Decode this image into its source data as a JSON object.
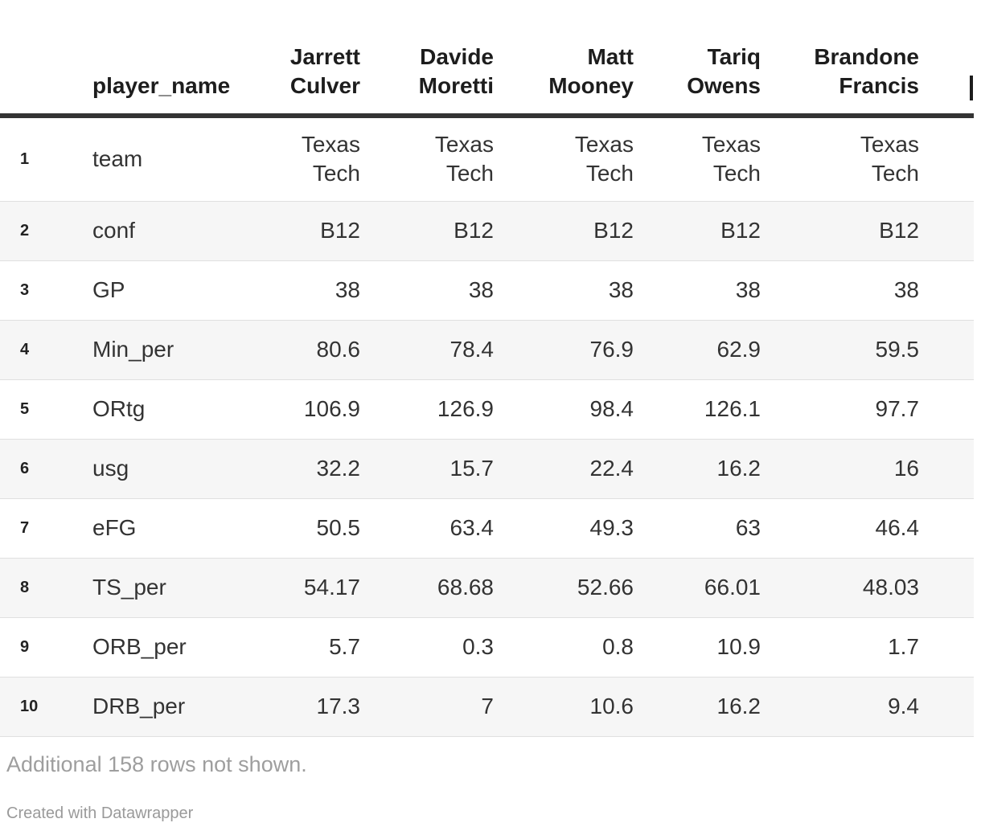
{
  "table": {
    "header_label": "player_name",
    "player_columns": [
      "Jarrett\nCulver",
      "Davide\nMoretti",
      "Matt\nMooney",
      "Tariq\nOwens",
      "Brandone\nFrancis"
    ],
    "clipped_next_column": {
      "partial_glyph_visible": true
    },
    "rows": [
      {
        "num": "1",
        "label": "team",
        "values": [
          "Texas\nTech",
          "Texas\nTech",
          "Texas\nTech",
          "Texas\nTech",
          "Texas\nTech"
        ]
      },
      {
        "num": "2",
        "label": "conf",
        "values": [
          "B12",
          "B12",
          "B12",
          "B12",
          "B12"
        ]
      },
      {
        "num": "3",
        "label": "GP",
        "values": [
          "38",
          "38",
          "38",
          "38",
          "38"
        ]
      },
      {
        "num": "4",
        "label": "Min_per",
        "values": [
          "80.6",
          "78.4",
          "76.9",
          "62.9",
          "59.5"
        ]
      },
      {
        "num": "5",
        "label": "ORtg",
        "values": [
          "106.9",
          "126.9",
          "98.4",
          "126.1",
          "97.7"
        ]
      },
      {
        "num": "6",
        "label": "usg",
        "values": [
          "32.2",
          "15.7",
          "22.4",
          "16.2",
          "16"
        ]
      },
      {
        "num": "7",
        "label": "eFG",
        "values": [
          "50.5",
          "63.4",
          "49.3",
          "63",
          "46.4"
        ]
      },
      {
        "num": "8",
        "label": "TS_per",
        "values": [
          "54.17",
          "68.68",
          "52.66",
          "66.01",
          "48.03"
        ]
      },
      {
        "num": "9",
        "label": "ORB_per",
        "values": [
          "5.7",
          "0.3",
          "0.8",
          "10.9",
          "1.7"
        ]
      },
      {
        "num": "10",
        "label": "DRB_per",
        "values": [
          "17.3",
          "7",
          "10.6",
          "16.2",
          "9.4"
        ]
      }
    ]
  },
  "footer": {
    "note": "Additional 158 rows not shown.",
    "credit": "Created with Datawrapper"
  },
  "colors": {
    "header_border": "#333333",
    "row_stripe": "#f6f6f6",
    "row_divider": "#e0e0e0",
    "body_text": "#333333",
    "header_text": "#1d1d1d",
    "muted_text": "#9e9e9e"
  }
}
